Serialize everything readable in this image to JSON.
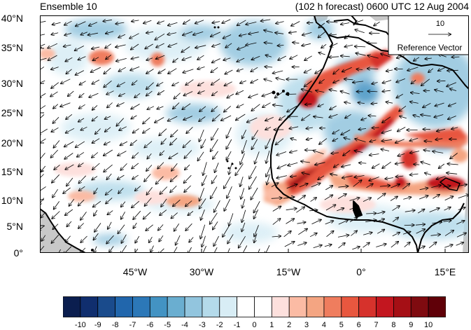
{
  "header": {
    "left_title": "Ensemble 10",
    "right_title": "(102 h forecast) 0600 UTC 12 Aug 2004"
  },
  "map": {
    "lat_labels": [
      "40°N",
      "35°N",
      "30°N",
      "25°N",
      "20°N",
      "15°N",
      "10°N",
      "5°N",
      "0°"
    ],
    "lon_labels": [
      "45°W",
      "30°W",
      "15°W",
      "0°",
      "15°E"
    ],
    "ocean_color": "#ffffff",
    "land_mask_color": "#c8c8c8"
  },
  "reference_vector": {
    "magnitude": "10",
    "label": "Reference Vector"
  },
  "colorbar": {
    "labels": [
      "-10",
      "-9",
      "-8",
      "-7",
      "-6",
      "-5",
      "-4",
      "-3",
      "-2",
      "-1",
      "0",
      "1",
      "2",
      "3",
      "4",
      "5",
      "6",
      "7",
      "8",
      "9",
      "10"
    ],
    "colors": [
      "#0b1e4f",
      "#102e6e",
      "#1a4b8c",
      "#2166ac",
      "#2c78b8",
      "#4393c3",
      "#6aaed0",
      "#92c5de",
      "#b4daea",
      "#d8edf5",
      "#ffffff",
      "#ffffff",
      "#fde0dd",
      "#fbbba4",
      "#f4a582",
      "#ef7d5e",
      "#e8573f",
      "#d6322c",
      "#c3161f",
      "#a50f15",
      "#7f0b10",
      "#600008"
    ]
  }
}
